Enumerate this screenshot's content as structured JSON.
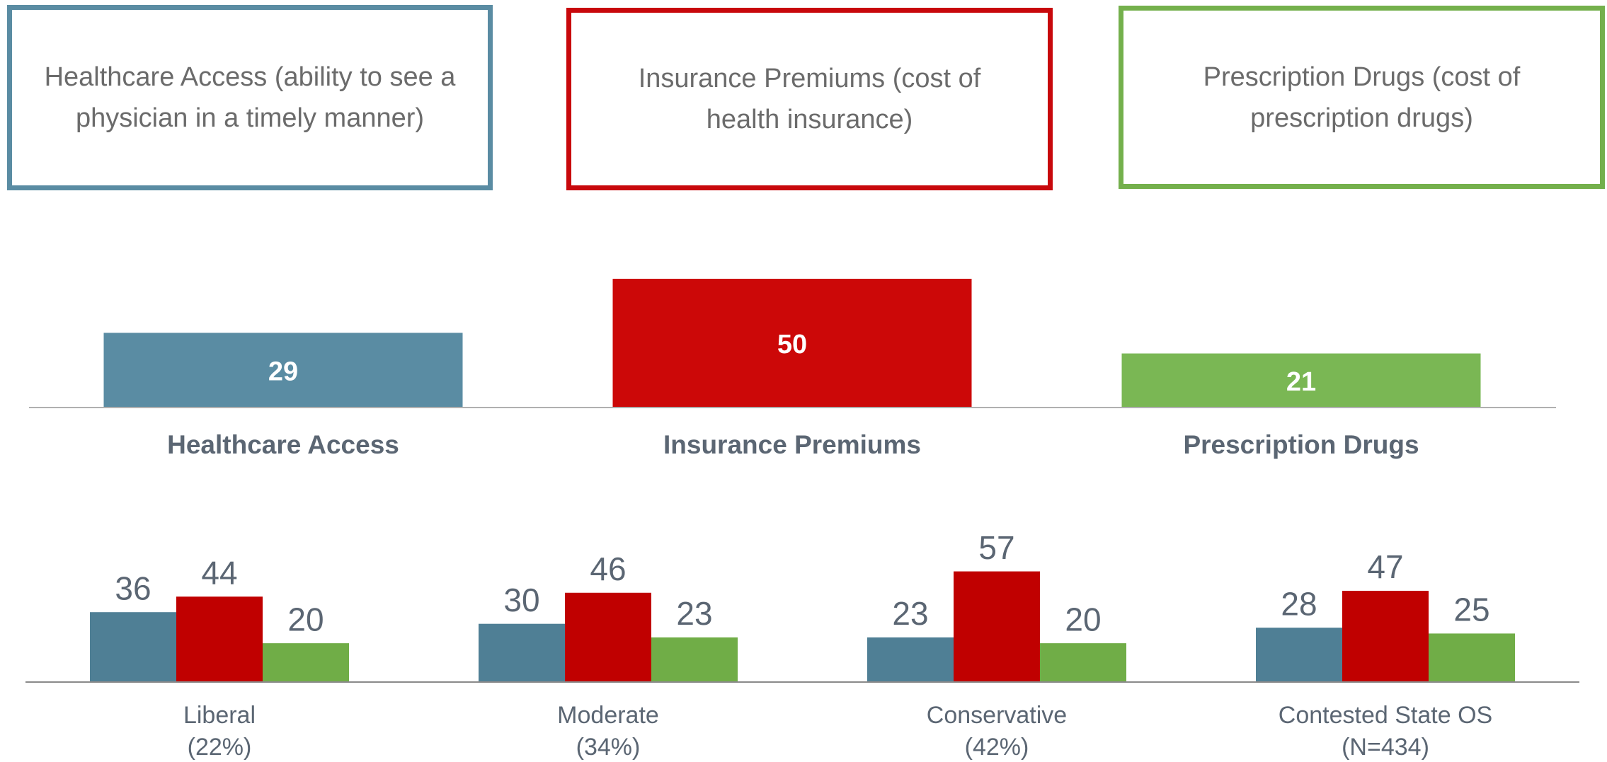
{
  "boxes": [
    {
      "text": "Healthcare Access (ability to see a physician in a timely manner)",
      "color": "#5a8ca3"
    },
    {
      "text": "Insurance Premiums (cost of health insurance)",
      "color": "#c8080c"
    },
    {
      "text": "Prescription Drugs (cost of prescription drugs)",
      "color": "#74b04c"
    }
  ],
  "chart_data": [
    {
      "type": "bar",
      "categories": [
        "Healthcare Access",
        "Insurance Premiums",
        "Prescription Drugs"
      ],
      "values": [
        29,
        50,
        21
      ],
      "colors": [
        "#5a8ca3",
        "#cc0808",
        "#7ab754"
      ],
      "ylim": [
        0,
        50
      ]
    },
    {
      "type": "grouped_bar",
      "categories": [
        "Liberal",
        "Moderate",
        "Conservative",
        "Contested State OS"
      ],
      "subcategories": [
        "(22%)",
        "(34%)",
        "(42%)",
        "(N=434)"
      ],
      "series": [
        {
          "color": "#4f7f95",
          "values": [
            36,
            30,
            23,
            28
          ]
        },
        {
          "color": "#c00000",
          "values": [
            44,
            46,
            57,
            47
          ]
        },
        {
          "color": "#70ad47",
          "values": [
            20,
            23,
            20,
            25
          ]
        }
      ],
      "ylim": [
        0,
        60
      ]
    }
  ]
}
